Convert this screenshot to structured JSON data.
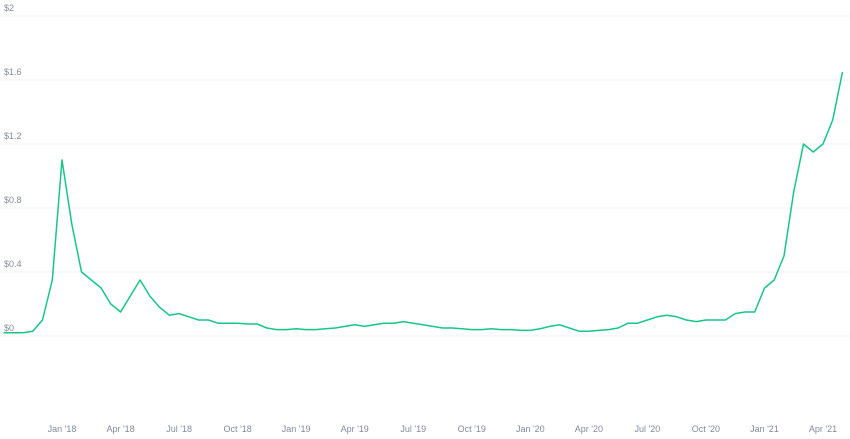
{
  "chart_data": {
    "type": "line",
    "categories": [
      null,
      null,
      null,
      null,
      null,
      null,
      "Jan '18",
      null,
      null,
      null,
      null,
      null,
      "Apr '18",
      null,
      null,
      null,
      null,
      null,
      "Jul '18",
      null,
      null,
      null,
      null,
      null,
      "Oct '18",
      null,
      null,
      null,
      null,
      null,
      "Jan '19",
      null,
      null,
      null,
      null,
      null,
      "Apr '19",
      null,
      null,
      null,
      null,
      null,
      "Jul '19",
      null,
      null,
      null,
      null,
      null,
      "Oct '19",
      null,
      null,
      null,
      null,
      null,
      "Jan '20",
      null,
      null,
      null,
      null,
      null,
      "Apr '20",
      null,
      null,
      null,
      null,
      null,
      "Jul '20",
      null,
      null,
      null,
      null,
      null,
      "Oct '20",
      null,
      null,
      null,
      null,
      null,
      "Jan '21",
      null,
      null,
      null,
      null,
      null,
      "Apr '21",
      null,
      null
    ],
    "values": [
      0.02,
      0.02,
      0.02,
      0.03,
      0.1,
      0.35,
      1.1,
      0.7,
      0.4,
      0.35,
      0.3,
      0.2,
      0.15,
      0.25,
      0.35,
      0.25,
      0.18,
      0.13,
      0.14,
      0.12,
      0.1,
      0.1,
      0.08,
      0.08,
      0.08,
      0.075,
      0.075,
      0.05,
      0.04,
      0.04,
      0.045,
      0.04,
      0.04,
      0.045,
      0.05,
      0.06,
      0.07,
      0.06,
      0.07,
      0.08,
      0.08,
      0.09,
      0.08,
      0.07,
      0.06,
      0.05,
      0.05,
      0.045,
      0.04,
      0.04,
      0.045,
      0.04,
      0.04,
      0.035,
      0.035,
      0.045,
      0.06,
      0.07,
      0.05,
      0.03,
      0.03,
      0.035,
      0.04,
      0.05,
      0.08,
      0.08,
      0.1,
      0.12,
      0.13,
      0.12,
      0.1,
      0.09,
      0.1,
      0.1,
      0.1,
      0.14,
      0.15,
      0.15,
      0.3,
      0.35,
      0.5,
      0.9,
      1.2,
      1.15,
      1.2,
      1.35,
      1.65
    ],
    "color": "#16c784",
    "ylim": [
      0,
      2
    ],
    "yticks": [
      {
        "value": 0,
        "label": "$0"
      },
      {
        "value": 0.4,
        "label": "$0.4"
      },
      {
        "value": 0.8,
        "label": "$0.8"
      },
      {
        "value": 1.2,
        "label": "$1.2"
      },
      {
        "value": 1.6,
        "label": "$1.6"
      },
      {
        "value": 2,
        "label": "$2"
      }
    ],
    "grid": true
  }
}
